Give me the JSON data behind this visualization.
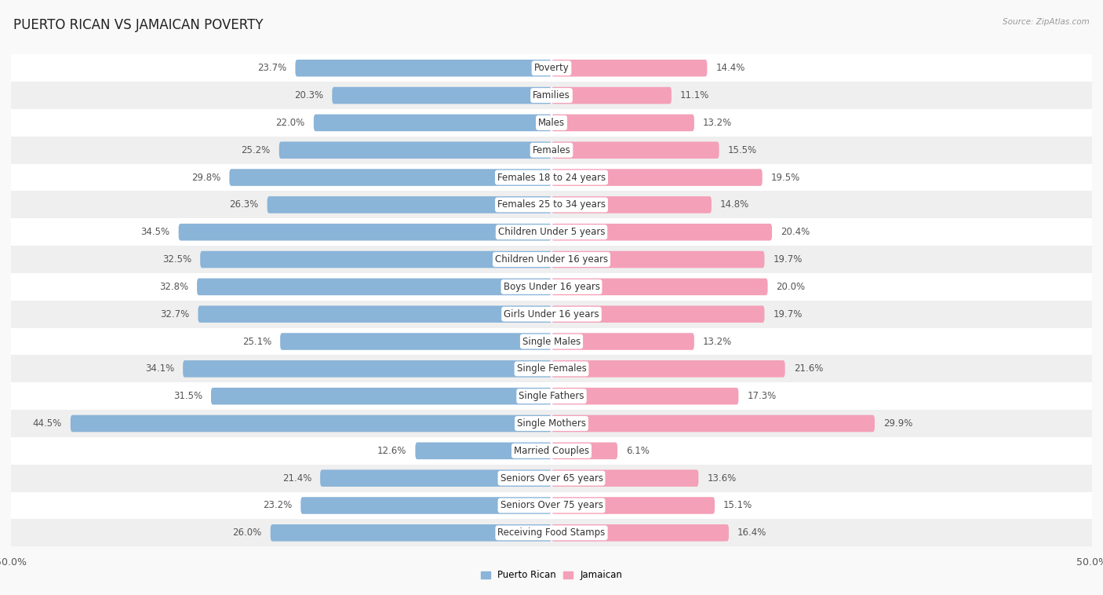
{
  "title": "PUERTO RICAN VS JAMAICAN POVERTY",
  "source": "Source: ZipAtlas.com",
  "categories": [
    "Poverty",
    "Families",
    "Males",
    "Females",
    "Females 18 to 24 years",
    "Females 25 to 34 years",
    "Children Under 5 years",
    "Children Under 16 years",
    "Boys Under 16 years",
    "Girls Under 16 years",
    "Single Males",
    "Single Females",
    "Single Fathers",
    "Single Mothers",
    "Married Couples",
    "Seniors Over 65 years",
    "Seniors Over 75 years",
    "Receiving Food Stamps"
  ],
  "puerto_rican": [
    23.7,
    20.3,
    22.0,
    25.2,
    29.8,
    26.3,
    34.5,
    32.5,
    32.8,
    32.7,
    25.1,
    34.1,
    31.5,
    44.5,
    12.6,
    21.4,
    23.2,
    26.0
  ],
  "jamaican": [
    14.4,
    11.1,
    13.2,
    15.5,
    19.5,
    14.8,
    20.4,
    19.7,
    20.0,
    19.7,
    13.2,
    21.6,
    17.3,
    29.9,
    6.1,
    13.6,
    15.1,
    16.4
  ],
  "pr_color": "#8ab4d8",
  "jam_color": "#f4a0b8",
  "pr_label": "Puerto Rican",
  "jam_label": "Jamaican",
  "axis_max": 50.0,
  "background_color": "#f9f9f9",
  "row_light": "#ffffff",
  "row_dark": "#efefef",
  "title_fontsize": 12,
  "label_fontsize": 8.5,
  "value_fontsize": 8.5,
  "axis_label_fontsize": 9
}
